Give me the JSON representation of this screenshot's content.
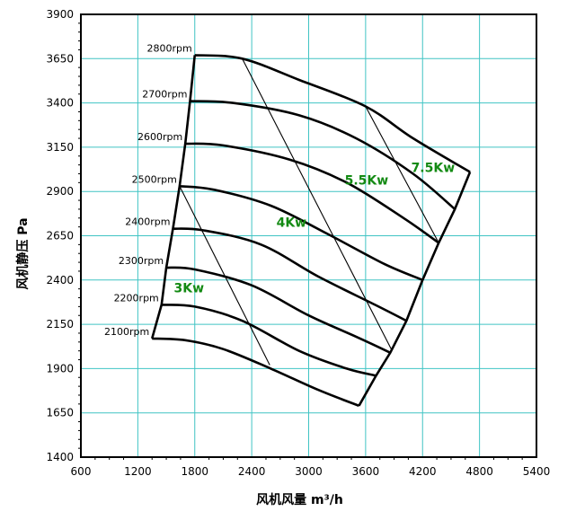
{
  "chart_data": {
    "type": "line",
    "title": "",
    "xlabel": "风机风量  m³/h",
    "ylabel": "风机静压  Pa",
    "xlim": [
      600,
      5400
    ],
    "ylim": [
      1400,
      3900
    ],
    "xticks": [
      600,
      1200,
      1800,
      2400,
      3000,
      3600,
      4200,
      4800,
      5400
    ],
    "yticks": [
      1400,
      1650,
      1900,
      2150,
      2400,
      2650,
      2900,
      3150,
      3400,
      3650,
      3900
    ],
    "grid": true,
    "legend": "none",
    "series": [
      {
        "name": "2800rpm",
        "points": [
          [
            1800,
            3670
          ],
          [
            2300,
            3650
          ],
          [
            2900,
            3530
          ],
          [
            3600,
            3380
          ],
          [
            4100,
            3200
          ],
          [
            4700,
            3010
          ]
        ]
      },
      {
        "name": "2700rpm",
        "points": [
          [
            1750,
            3410
          ],
          [
            2200,
            3400
          ],
          [
            2900,
            3330
          ],
          [
            3500,
            3200
          ],
          [
            4100,
            3000
          ],
          [
            4540,
            2800
          ]
        ]
      },
      {
        "name": "2600rpm",
        "points": [
          [
            1700,
            3170
          ],
          [
            2100,
            3160
          ],
          [
            2800,
            3080
          ],
          [
            3400,
            2950
          ],
          [
            4000,
            2750
          ],
          [
            4370,
            2610
          ]
        ]
      },
      {
        "name": "2500rpm",
        "points": [
          [
            1640,
            2930
          ],
          [
            2000,
            2910
          ],
          [
            2600,
            2820
          ],
          [
            3200,
            2660
          ],
          [
            3800,
            2490
          ],
          [
            4200,
            2400
          ]
        ]
      },
      {
        "name": "2400rpm",
        "points": [
          [
            1570,
            2690
          ],
          [
            1900,
            2680
          ],
          [
            2500,
            2600
          ],
          [
            3100,
            2420
          ],
          [
            3700,
            2260
          ],
          [
            4030,
            2170
          ]
        ]
      },
      {
        "name": "2300rpm",
        "points": [
          [
            1500,
            2470
          ],
          [
            1800,
            2460
          ],
          [
            2400,
            2370
          ],
          [
            3000,
            2200
          ],
          [
            3500,
            2080
          ],
          [
            3860,
            1990
          ]
        ]
      },
      {
        "name": "2200rpm",
        "points": [
          [
            1450,
            2260
          ],
          [
            1800,
            2250
          ],
          [
            2300,
            2170
          ],
          [
            2900,
            2000
          ],
          [
            3400,
            1900
          ],
          [
            3710,
            1860
          ]
        ]
      },
      {
        "name": "2100rpm",
        "points": [
          [
            1350,
            2070
          ],
          [
            1700,
            2060
          ],
          [
            2100,
            2010
          ],
          [
            2600,
            1900
          ],
          [
            3100,
            1780
          ],
          [
            3530,
            1690
          ]
        ]
      }
    ],
    "boundary": [
      [
        1350,
        2070
      ],
      [
        1800,
        3670
      ],
      [
        2300,
        3650
      ],
      [
        2900,
        3530
      ],
      [
        3600,
        3380
      ],
      [
        4100,
        3200
      ],
      [
        4700,
        3010
      ],
      [
        3530,
        1690
      ],
      [
        3100,
        1780
      ],
      [
        2600,
        1900
      ],
      [
        2100,
        2010
      ],
      [
        1700,
        2060
      ]
    ],
    "power_lines": [
      {
        "label": "3Kw",
        "points": [
          [
            1640,
            2930
          ],
          [
            2590,
            1920
          ]
        ]
      },
      {
        "label": "4Kw",
        "points": [
          [
            2300,
            3650
          ],
          [
            3870,
            2010
          ]
        ]
      },
      {
        "label": "5.5Kw",
        "points": [
          [
            3600,
            3380
          ],
          [
            4370,
            2610
          ]
        ]
      }
    ],
    "annotations": [
      {
        "text": "3Kw",
        "x": 1580,
        "y": 2330
      },
      {
        "text": "4Kw",
        "x": 2660,
        "y": 2700
      },
      {
        "text": "5.5Kw",
        "x": 3380,
        "y": 2940
      },
      {
        "text": "7.5Kw",
        "x": 4080,
        "y": 3010
      }
    ]
  }
}
